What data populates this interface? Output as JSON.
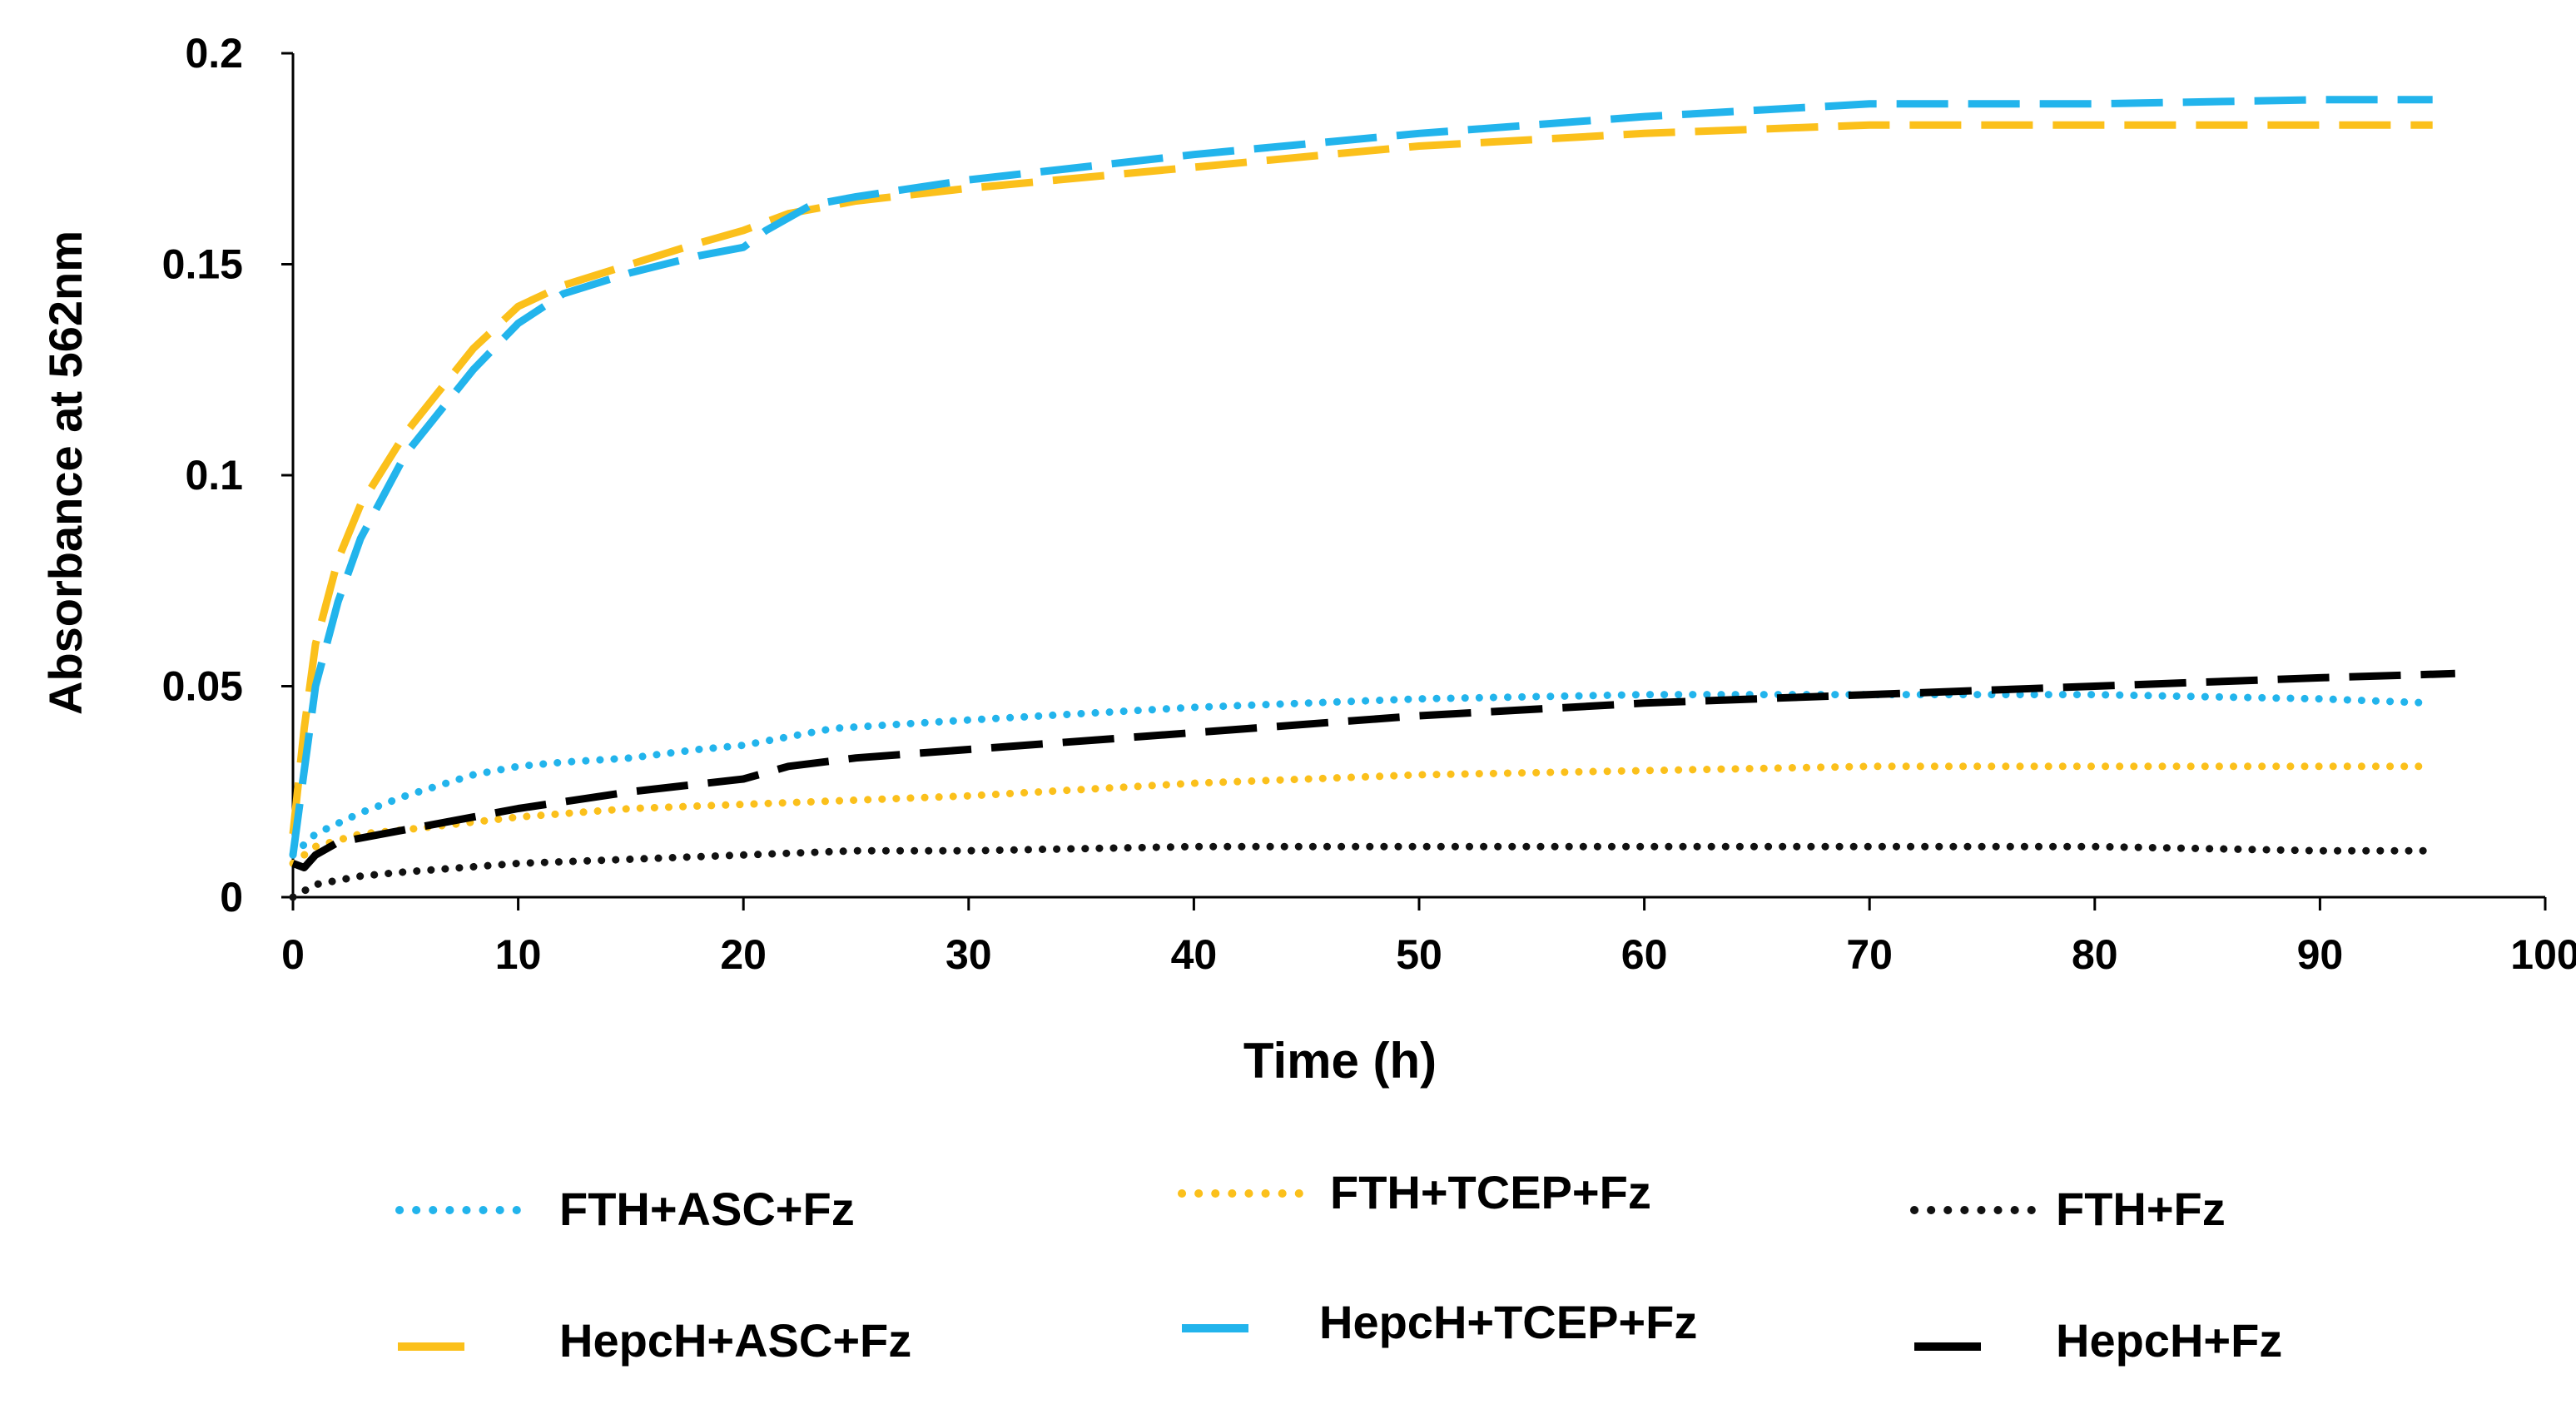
{
  "chart_data": {
    "type": "line",
    "title": "",
    "xlabel": "Time (h)",
    "ylabel": "Absorbance at 562nm",
    "xlim": [
      0,
      100
    ],
    "ylim": [
      0,
      0.2
    ],
    "xticks": [
      0,
      10,
      20,
      30,
      40,
      50,
      60,
      70,
      80,
      90,
      100
    ],
    "yticks": [
      0,
      0.05,
      0.1,
      0.15,
      0.2
    ],
    "xtick_labels": [
      "0",
      "10",
      "20",
      "30",
      "40",
      "50",
      "60",
      "70",
      "80",
      "90",
      "100"
    ],
    "ytick_labels": [
      "0",
      "0.05",
      "0.1",
      "0.15",
      "0.2"
    ],
    "grid": false,
    "legend_position": "bottom",
    "series": [
      {
        "name": "FTH+ASC+Fz",
        "color": "#22B4EC",
        "style": "dotted",
        "x": [
          0,
          1,
          3,
          5,
          8,
          10,
          12,
          15,
          18,
          20,
          22,
          24,
          30,
          40,
          50,
          60,
          70,
          80,
          90,
          95
        ],
        "y": [
          0.01,
          0.015,
          0.02,
          0.024,
          0.029,
          0.031,
          0.032,
          0.033,
          0.035,
          0.036,
          0.038,
          0.04,
          0.042,
          0.045,
          0.047,
          0.048,
          0.048,
          0.048,
          0.047,
          0.046
        ]
      },
      {
        "name": "FTH+TCEP+Fz",
        "color": "#FBC01B",
        "style": "dotted",
        "x": [
          0,
          1,
          3,
          5,
          10,
          15,
          20,
          25,
          30,
          40,
          50,
          60,
          70,
          80,
          90,
          95
        ],
        "y": [
          0.008,
          0.012,
          0.015,
          0.016,
          0.019,
          0.021,
          0.022,
          0.023,
          0.024,
          0.027,
          0.029,
          0.03,
          0.031,
          0.031,
          0.031,
          0.031
        ]
      },
      {
        "name": "FTH+Fz",
        "color": "#111111",
        "style": "dotted",
        "x": [
          0,
          1,
          3,
          5,
          10,
          15,
          20,
          25,
          30,
          40,
          50,
          60,
          70,
          80,
          90,
          95
        ],
        "y": [
          0,
          0.003,
          0.005,
          0.006,
          0.008,
          0.009,
          0.01,
          0.011,
          0.011,
          0.012,
          0.012,
          0.012,
          0.012,
          0.012,
          0.011,
          0.011
        ]
      },
      {
        "name": "HepcH+ASC+Fz",
        "color": "#FBC01B",
        "style": "dashed",
        "x": [
          0,
          0.5,
          1,
          2,
          3,
          5,
          8,
          10,
          12,
          15,
          18,
          20,
          22,
          25,
          30,
          40,
          50,
          60,
          70,
          80,
          90,
          95
        ],
        "y": [
          0.015,
          0.04,
          0.06,
          0.08,
          0.093,
          0.11,
          0.13,
          0.14,
          0.145,
          0.15,
          0.155,
          0.158,
          0.162,
          0.165,
          0.168,
          0.173,
          0.178,
          0.181,
          0.183,
          0.183,
          0.183,
          0.183
        ]
      },
      {
        "name": "HepcH+TCEP+Fz",
        "color": "#22B4EC",
        "style": "dashed",
        "x": [
          0,
          0.5,
          1,
          2,
          3,
          5,
          8,
          10,
          12,
          15,
          18,
          20,
          21,
          23,
          25,
          30,
          40,
          50,
          60,
          70,
          80,
          90,
          95
        ],
        "y": [
          0.01,
          0.03,
          0.05,
          0.07,
          0.085,
          0.105,
          0.125,
          0.136,
          0.143,
          0.148,
          0.152,
          0.154,
          0.158,
          0.164,
          0.166,
          0.17,
          0.176,
          0.181,
          0.185,
          0.188,
          0.188,
          0.189,
          0.189
        ]
      },
      {
        "name": "HepcH+Fz",
        "color": "#000000",
        "style": "dashed",
        "x": [
          0,
          0.5,
          1,
          2,
          3,
          5,
          8,
          10,
          15,
          20,
          22,
          25,
          30,
          40,
          50,
          60,
          70,
          80,
          90,
          96
        ],
        "y": [
          0.008,
          0.007,
          0.01,
          0.013,
          0.014,
          0.016,
          0.019,
          0.021,
          0.025,
          0.028,
          0.031,
          0.033,
          0.035,
          0.039,
          0.043,
          0.046,
          0.048,
          0.05,
          0.052,
          0.053
        ]
      }
    ]
  }
}
